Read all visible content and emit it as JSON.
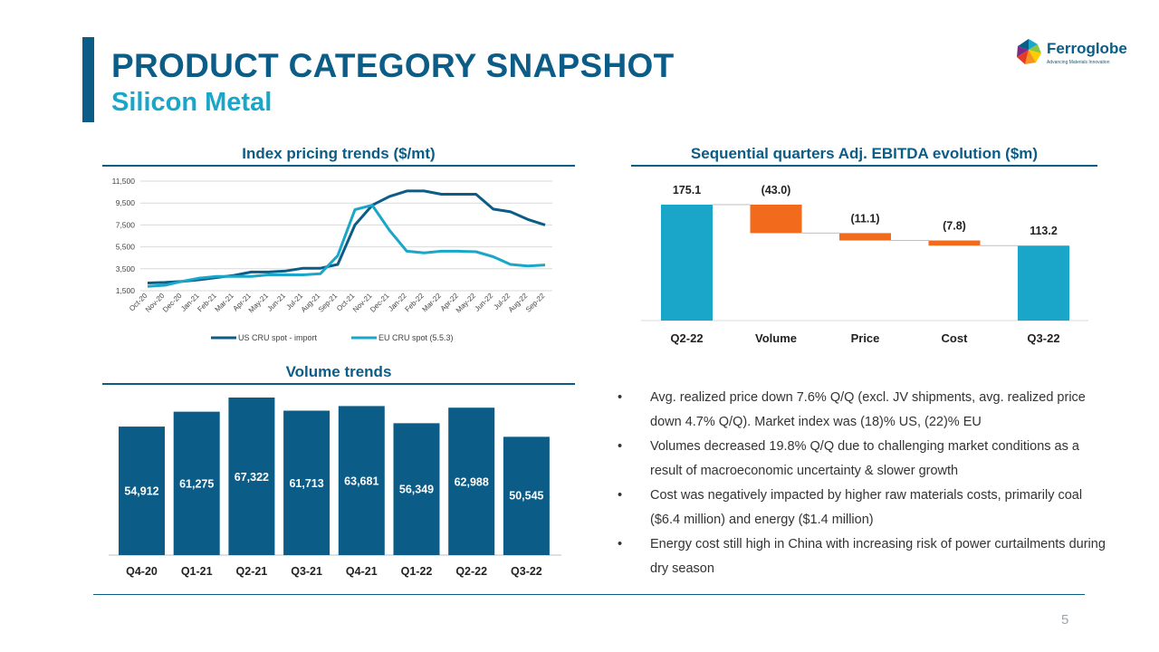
{
  "header": {
    "title": "PRODUCT CATEGORY SNAPSHOT",
    "subtitle": "Silicon Metal"
  },
  "logo": {
    "name": "Ferroglobe",
    "tagline": "Advancing Materials Innovation",
    "colors": [
      "#e63a24",
      "#f7941d",
      "#ffcc00",
      "#8cc63f",
      "#19a6c9",
      "#0b5c86",
      "#7b2b83"
    ]
  },
  "colors": {
    "primary": "#0b5c86",
    "secondary": "#19a6c9",
    "negative": "#f26a1b",
    "text": "#333333"
  },
  "sections": {
    "pricing_title": "Index pricing trends ($/mt)",
    "ebitda_title": "Sequential quarters Adj. EBITDA evolution ($m)",
    "volume_title": "Volume trends"
  },
  "bullets": [
    "Avg. realized price down 7.6% Q/Q (excl. JV shipments, avg. realized price down 4.7% Q/Q).  Market index was (18)% US, (22)% EU",
    "Volumes decreased 19.8% Q/Q due to challenging market conditions as a result of macroeconomic uncertainty & slower growth",
    "Cost was negatively impacted by higher raw materials costs, primarily coal ($6.4 million)  and energy ($1.4 million)",
    "Energy cost still high in China with increasing risk of power curtailments during dry season"
  ],
  "page_number": "5",
  "chart_data": [
    {
      "type": "line",
      "title": "Index pricing trends ($/mt)",
      "categories": [
        "Oct-20",
        "Nov-20",
        "Dec-20",
        "Jan-21",
        "Feb-21",
        "Mar-21",
        "Apr-21",
        "May-21",
        "Jun-21",
        "Jul-21",
        "Aug-21",
        "Sep-21",
        "Oct-21",
        "Nov-21",
        "Dec-21",
        "Jan-22",
        "Feb-22",
        "Mar-22",
        "Apr-22",
        "May-22",
        "Jun-22",
        "Jul-22",
        "Aug-22",
        "Sep-22"
      ],
      "yticks": [
        1500,
        3500,
        5500,
        7500,
        9500,
        11500
      ],
      "ytick_labels": [
        "1,500",
        "3,500",
        "5,500",
        "7,500",
        "9,500",
        "11,500"
      ],
      "ylim": [
        1500,
        11500
      ],
      "grid": true,
      "legend_position": "bottom",
      "series": [
        {
          "name": "US CRU spot - import",
          "color": "#0b5c86",
          "values": [
            2200,
            2250,
            2350,
            2500,
            2700,
            2900,
            3200,
            3200,
            3300,
            3550,
            3550,
            3900,
            7500,
            9300,
            10100,
            10600,
            10600,
            10300,
            10300,
            10300,
            8950,
            8700,
            8000,
            7500
          ]
        },
        {
          "name": "EU CRU spot (5.5.3)",
          "color": "#19a6c9",
          "values": [
            1900,
            2000,
            2350,
            2650,
            2800,
            2800,
            2800,
            2950,
            2950,
            2950,
            3050,
            4700,
            8900,
            9300,
            7000,
            5100,
            4950,
            5100,
            5100,
            5050,
            4600,
            3900,
            3750,
            3850
          ]
        }
      ]
    },
    {
      "type": "bar",
      "subtype": "waterfall",
      "title": "Sequential quarters Adj. EBITDA evolution ($m)",
      "categories": [
        "Q2-22",
        "Volume",
        "Price",
        "Cost",
        "Q3-22"
      ],
      "values": [
        175.1,
        -43.0,
        -11.1,
        -7.8,
        113.2
      ],
      "labels": [
        "175.1",
        "(43.0)",
        "(11.1)",
        "(7.8)",
        "113.2"
      ],
      "kinds": [
        "total",
        "delta",
        "delta",
        "delta",
        "total"
      ]
    },
    {
      "type": "bar",
      "title": "Volume trends",
      "categories": [
        "Q4-20",
        "Q1-21",
        "Q2-21",
        "Q3-21",
        "Q4-21",
        "Q1-22",
        "Q2-22",
        "Q3-22"
      ],
      "values": [
        54912,
        61275,
        67322,
        61713,
        63681,
        56349,
        62988,
        50545
      ],
      "labels": [
        "54,912",
        "61,275",
        "67,322",
        "61,713",
        "63,681",
        "56,349",
        "62,988",
        "50,545"
      ]
    }
  ]
}
